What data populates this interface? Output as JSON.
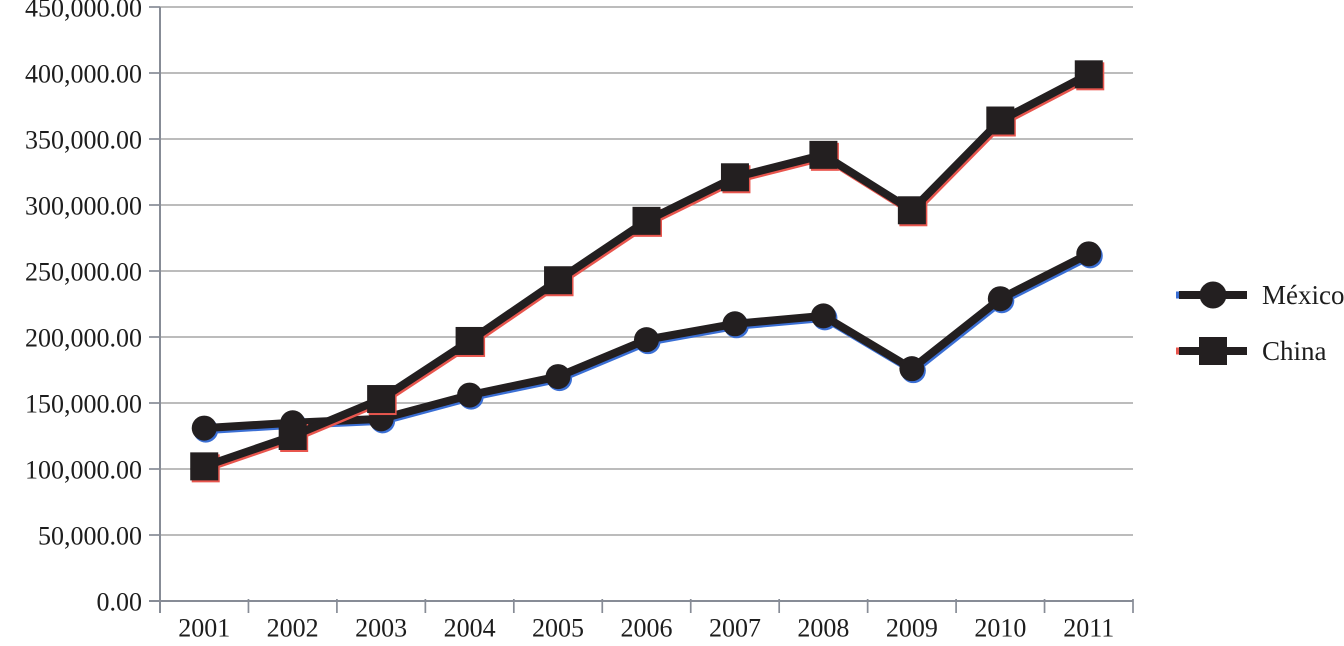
{
  "chart_data": {
    "type": "line",
    "categories": [
      "2001",
      "2002",
      "2003",
      "2004",
      "2005",
      "2006",
      "2007",
      "2008",
      "2009",
      "2010",
      "2011"
    ],
    "series": [
      {
        "name": "México",
        "marker": "circle",
        "color": "#231f20",
        "fringe_color": "#3b6fd4",
        "values": [
          131000,
          135000,
          138000,
          156000,
          170000,
          198000,
          210000,
          216000,
          176000,
          229000,
          263000
        ]
      },
      {
        "name": "China",
        "marker": "square",
        "color": "#231f20",
        "fringe_color": "#e8564e",
        "values": [
          102000,
          125000,
          153000,
          197000,
          243000,
          288000,
          321000,
          338000,
          296000,
          364000,
          399000
        ]
      }
    ],
    "ylim": [
      0,
      450000
    ],
    "ytick_step": 50000,
    "ytick_labels": [
      "0.00",
      "50,000.00",
      "100,000.00",
      "150,000.00",
      "200,000.00",
      "250,000.00",
      "300,000.00",
      "350,000.00",
      "400,000.00",
      "450,000.00"
    ],
    "grid": true,
    "legend_position": "right",
    "legend": [
      "México",
      "China"
    ]
  },
  "colors": {
    "background": "#ffffff",
    "grid": "#a6a6a6",
    "axis": "#878c96",
    "text": "#1d1d1d",
    "line": "#231f20"
  }
}
